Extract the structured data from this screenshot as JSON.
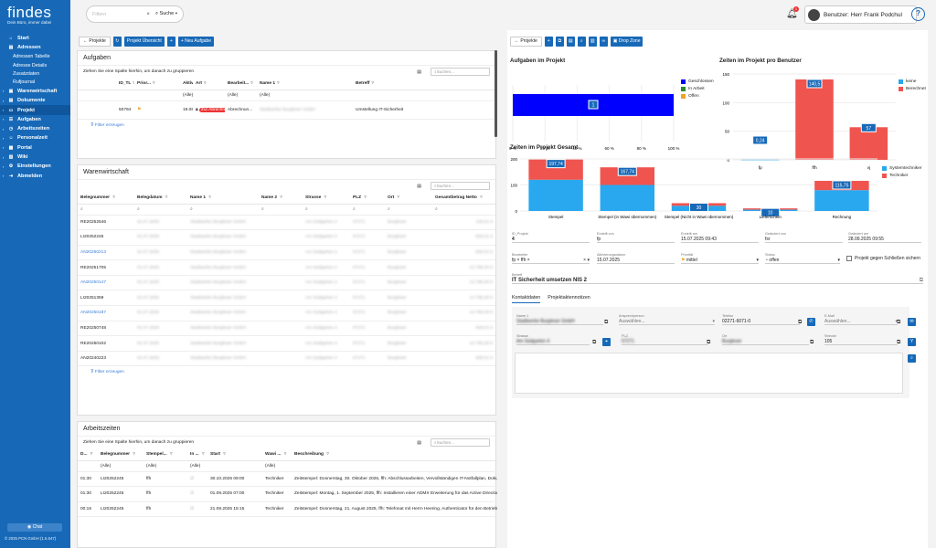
{
  "brand": {
    "logo": "findes",
    "tagline": "Dein Büro, immer dabei"
  },
  "nav": [
    {
      "label": "Start",
      "icon": "home-icon",
      "glyph": "⌂",
      "sub": []
    },
    {
      "label": "Adressen",
      "icon": "addressbook-icon",
      "glyph": "▤",
      "sub": [
        "Adressen Tabelle",
        "Adresse Details",
        "Zusatzdaten",
        "Rufjournal"
      ]
    },
    {
      "label": "Warenwirtschaft",
      "icon": "cart-icon",
      "glyph": "▣",
      "sub": []
    },
    {
      "label": "Dokumente",
      "icon": "document-icon",
      "glyph": "▤",
      "sub": []
    },
    {
      "label": "Projekt",
      "icon": "folder-icon",
      "glyph": "▭",
      "sub": []
    },
    {
      "label": "Aufgaben",
      "icon": "tasks-icon",
      "glyph": "☰",
      "sub": []
    },
    {
      "label": "Arbeitszeiten",
      "icon": "clock-icon",
      "glyph": "◷",
      "sub": []
    },
    {
      "label": "Personalzeit",
      "icon": "person-icon",
      "glyph": "☺",
      "sub": []
    },
    {
      "label": "Portal",
      "icon": "portal-icon",
      "glyph": "▦",
      "sub": []
    },
    {
      "label": "Wiki",
      "icon": "book-icon",
      "glyph": "▥",
      "sub": []
    },
    {
      "label": "Einstellungen",
      "icon": "gear-icon",
      "glyph": "⚙",
      "sub": []
    },
    {
      "label": "Abmelden",
      "icon": "logout-icon",
      "glyph": "⇥",
      "sub": []
    }
  ],
  "chat": "Chat",
  "copyright": "© 2025 PCN GmbH (1.5.547)",
  "search": {
    "placeholder": "Filtern",
    "scope": "Suche"
  },
  "user": {
    "label": "Benutzer: Herr Frank Podchul",
    "notifications": "1"
  },
  "left_toolbar": {
    "back": "Projekte",
    "overview": "Projekt Übersicht",
    "new_task": "Neu Aufgabe"
  },
  "aufgaben": {
    "title": "Aufgaben",
    "hint": "Ziehen Sie eine Spalte hierhin, um danach zu gruppieren",
    "search": "Suchen...",
    "headers": [
      "ID_TL",
      "Prior...",
      "Aktivierungsdatum",
      "Art",
      "Bearbeit...",
      "Name 1",
      "Betreff"
    ],
    "filters": [
      "",
      "",
      "(Alle)",
      "",
      "(Alle)",
      "(Alle)",
      ""
    ],
    "rows": [
      [
        "50794",
        "",
        "19.08.2024",
        "Zur Abrechnung",
        "Abrechnun...",
        "Stadtwerke Burgleser GmbH",
        "Umstellung IT-Sicherheit"
      ]
    ],
    "filter_link": "Filter erzeugen"
  },
  "warenwirtschaft": {
    "title": "Warenwirtschaft",
    "search": "Suchen...",
    "headers": [
      "Belegnummer",
      "Belegdatum",
      "Name 1",
      "Name 2",
      "Strasse",
      "PLZ",
      "Ort",
      "Gesamtbetrag Netto"
    ],
    "rows": [
      [
        "RE20252546",
        "01.07.2025",
        "Stadtwerke Burgleser GmbH",
        "",
        "Am Südgarten 4",
        "57271",
        "Burgleser",
        "128,01 €"
      ],
      [
        "LI20252245",
        "01.07.2025",
        "Stadtwerke Burgleser GmbH",
        "",
        "Am Südgarten 4",
        "57271",
        "Burgleser",
        "928,01 €"
      ],
      [
        "AN20250213",
        "01.07.2025",
        "Stadtwerke Burgleser GmbH",
        "",
        "Am Südgarten 4",
        "57271",
        "Burgleser",
        "928,01 €"
      ],
      [
        "RE20251705",
        "01.07.2025",
        "Stadtwerke Burgleser GmbH",
        "",
        "Am Südgarten 4",
        "57271",
        "Burgleser",
        "12.768,30 €"
      ],
      [
        "AN20250147",
        "01.07.2025",
        "Stadtwerke Burgleser GmbH",
        "",
        "Am Südgarten 4",
        "57271",
        "Burgleser",
        "12.768,30 €"
      ],
      [
        "LI20251359",
        "01.07.2025",
        "Stadtwerke Burgleser GmbH",
        "",
        "Am Südgarten 4",
        "57271",
        "Burgleser",
        "12.768,30 €"
      ],
      [
        "AN20250187",
        "01.07.2025",
        "Stadtwerke Burgleser GmbH",
        "",
        "Am Südgarten 4",
        "57271",
        "Burgleser",
        "12.768,30 €"
      ],
      [
        "RE20250748",
        "01.07.2025",
        "Stadtwerke Burgleser GmbH",
        "",
        "Am Südgarten 4",
        "57271",
        "Burgleser",
        "928,01 €"
      ],
      [
        "RE20250102",
        "01.07.2025",
        "Stadtwerke Burgleser GmbH",
        "",
        "Am Südgarten 4",
        "57271",
        "Burgleser",
        "12.768,30 €"
      ],
      [
        "AN20240223",
        "01.07.2025",
        "Stadtwerke Burgleser GmbH",
        "",
        "Am Südgarten 4",
        "57271",
        "Burgleser",
        "928,01 €"
      ]
    ],
    "link_rows": [
      2,
      4,
      6
    ],
    "filter_link": "Filter erzeugen"
  },
  "arbeitszeiten": {
    "title": "Arbeitszeiten",
    "hint": "Ziehen Sie eine Spalte hierhin, um danach zu gruppieren",
    "search": "Suchen...",
    "headers": [
      "D...",
      "Belegnummer",
      "Stempel...",
      "In ...",
      "Start",
      "Wawi ...",
      "Beschreibung"
    ],
    "filters": [
      "",
      "(Alle)",
      "(Alle)",
      "(Alle)",
      "",
      "(Alle)",
      ""
    ],
    "rows": [
      [
        "01:30",
        "LI20252245",
        "ffh",
        "",
        "30.10.2025 09:00",
        "Techniker",
        "Zeitstempel: Donnerstag, 30. Oktober 2025, ffh: Abschlussarbeiten, Vervollständigen IT-Notfallplan, Doku"
      ],
      [
        "01:30",
        "LI20252245",
        "ffh",
        "",
        "01.09.2025 07:00",
        "Techniker",
        "Zeitstempel: Montag, 1. September 2025, ffh: Installieren einer ADMX Erweiterung für das Active Directory"
      ],
      [
        "00:15",
        "LI20252245",
        "ffh",
        "",
        "21.08.2025 15:15",
        "Techniker",
        "Zeitstempel: Donnerstag, 21. August 2025, ffh: Telefonat mit Herrn Heering, Authenticator für den Betrieb"
      ]
    ]
  },
  "right_toolbar": {
    "back": "Projekte",
    "dropzone": "Drop Zone"
  },
  "charts": {
    "aufgaben_title": "Aufgaben im Projekt",
    "zeiten_benutzer_title": "Zeiten im Projekt pro Benutzer",
    "zeiten_gesamt_title": "Zeiten im Projekt Gesamt"
  },
  "chart_data": [
    {
      "type": "bar",
      "title": "Aufgaben im Projekt",
      "orientation": "horizontal",
      "stacked_percent": true,
      "series": [
        {
          "name": "Geschlossen",
          "values": [
            1
          ],
          "color": "#0000ff"
        },
        {
          "name": "In Arbeit",
          "values": [
            0
          ],
          "color": "#2e8b2e"
        },
        {
          "name": "Offen",
          "values": [
            0
          ],
          "color": "#f2a324"
        }
      ],
      "xticks": [
        "0 %",
        "20 %",
        "40 %",
        "60 %",
        "80 %",
        "100 %"
      ],
      "data_labels": [
        "1"
      ],
      "xlim": [
        0,
        100
      ]
    },
    {
      "type": "bar",
      "title": "Zeiten im Projekt pro Benutzer",
      "categories": [
        "fp",
        "ffh",
        "vj"
      ],
      "series": [
        {
          "name": "keine",
          "values": [
            0.24,
            0,
            0
          ],
          "color": "#29a8ef"
        },
        {
          "name": "Berechnet",
          "values": [
            0,
            140.5,
            57
          ],
          "color": "#f0544f"
        }
      ],
      "data_labels": [
        "0,24",
        "140,5",
        "57"
      ],
      "yticks": [
        "0",
        "50",
        "100",
        "150"
      ],
      "ylim": [
        0,
        150
      ]
    },
    {
      "type": "bar",
      "title": "Zeiten im Projekt Gesamt",
      "stacked": true,
      "categories": [
        "Stempel",
        "Stempel (in Wawi übernommen)",
        "Stempel (Nicht in Wawi übernommen)",
        "Lieferschein",
        "Rechnung"
      ],
      "series": [
        {
          "name": "Systemtechniker",
          "values": [
            120,
            100,
            20,
            5,
            80
          ],
          "color": "#29a8ef"
        },
        {
          "name": "Techniker",
          "values": [
            77.74,
            67.74,
            10,
            5,
            35.75
          ],
          "color": "#f0544f"
        }
      ],
      "data_labels": [
        "197,74",
        "167,74",
        "30",
        "10",
        "115,75"
      ],
      "yticks": [
        "0",
        "100",
        "200"
      ],
      "ylim": [
        0,
        200
      ]
    }
  ],
  "details": {
    "id_label": "ID_Projekt",
    "id": "4",
    "erstellt_von_label": "Erstellt von",
    "erstellt_von": "fp",
    "erstellt_am_label": "Erstellt am",
    "erstellt_am": "15.07.2025 09:43",
    "geaendert_von_label": "Geändert von",
    "geaendert_von": "fsr",
    "geaendert_am_label": "Geändert am",
    "geaendert_am": "28.09.2025 09:55",
    "bearbeiter_label": "Bearbeiter",
    "bearbeiter": [
      "fp",
      "ffh"
    ],
    "aktivierung_label": "Aktivierungsdatum",
    "aktivierung": "15.07.2025",
    "prioritaet_label": "Priorität",
    "prioritaet": "mittel",
    "status_label": "Status",
    "status": "offen",
    "checkbox": "Projekt gegen Schließen sichern",
    "betreff_label": "Betreff",
    "betreff": "IT Sicherheit umsetzen NIS 2",
    "tabs": [
      "Kontaktdaten",
      "Projektaktennotizen"
    ],
    "name_label": "Name 1",
    "name": "Stadtwerke Burgleser GmbH",
    "ansprech_label": "Ansprechperson",
    "ansprech": "Auswählen...",
    "telefon_label": "Telefon",
    "telefon": "02271-6071-0",
    "email_label": "E-Mail",
    "email": "Auswählen...",
    "strasse_label": "Strasse",
    "strasse": "Am Südgarten 4",
    "plz_label": "PLZ",
    "plz": "57271",
    "ort_label": "Ort",
    "ort": "Burgleser",
    "strecke_label": "Strecke",
    "strecke": "105"
  }
}
